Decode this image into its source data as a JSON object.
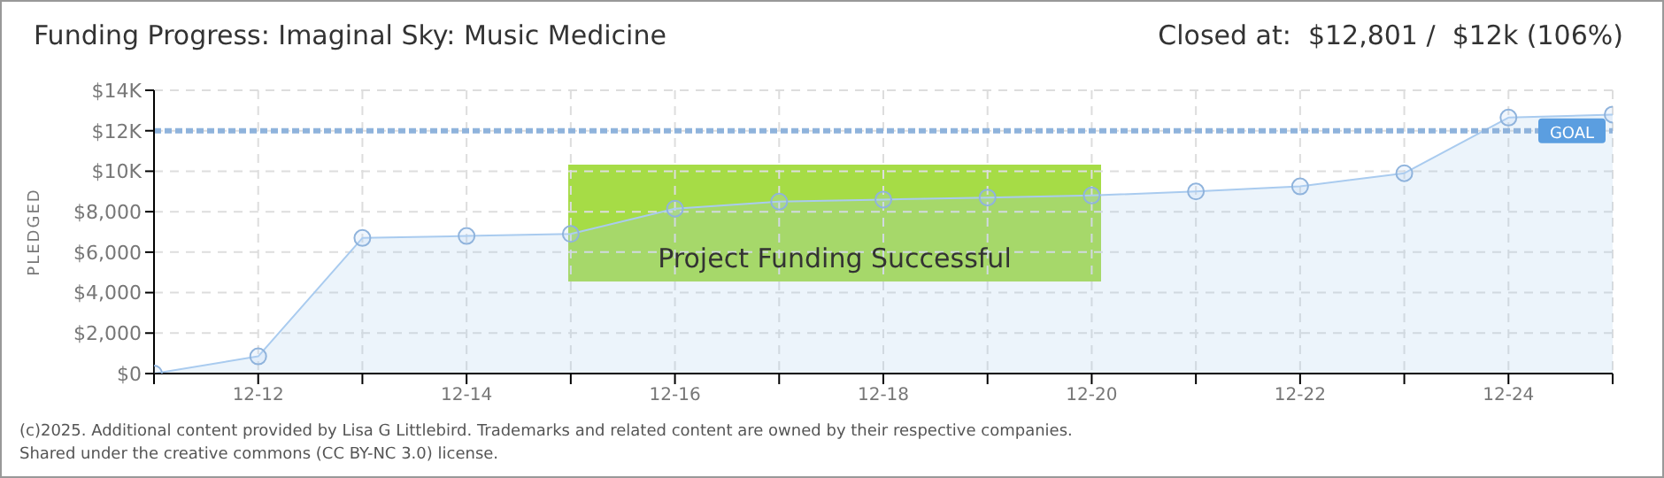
{
  "chart_data": {
    "type": "area",
    "title": "Funding Progress: Imaginal Sky: Music Medicine",
    "subtitle": "Closed at:  $12,801 /  $12k (106%)",
    "ylabel": "PLEDGED",
    "categories": [
      null,
      "12-12",
      null,
      "12-14",
      null,
      "12-16",
      null,
      "12-18",
      null,
      "12-20",
      null,
      "12-22",
      null,
      "12-24",
      null
    ],
    "series": [
      {
        "color": "#a9cbef",
        "values": [
          0,
          850,
          6700,
          6800,
          6900,
          8150,
          8500,
          8600,
          8700,
          8800,
          9000,
          9250,
          9900,
          12650,
          12801
        ]
      }
    ],
    "ylim": [
      0,
      14000
    ],
    "yticks": [
      {
        "value": 0,
        "label": "$0"
      },
      {
        "value": 2000,
        "label": "$2,000"
      },
      {
        "value": 4000,
        "label": "$4,000"
      },
      {
        "value": 6000,
        "label": "$6,000"
      },
      {
        "value": 8000,
        "label": "$8,000"
      },
      {
        "value": 10000,
        "label": "$10K"
      },
      {
        "value": 12000,
        "label": "$12K"
      },
      {
        "value": 14000,
        "label": "$14K"
      }
    ],
    "ref_lines": [
      {
        "axis": "y",
        "value": 12000,
        "label": "GOAL",
        "color": "#8fb3dc",
        "line_style": "dashed"
      }
    ],
    "annotations": [
      "Project Funding Successful",
      "(c)2025. Additional content provided by Lisa G Littlebird. Trademarks and related content are owned by their respective companies.",
      "Shared under the creative commons (CC BY-NC 3.0) license."
    ],
    "grid": true,
    "marker": "circle",
    "legend": false
  }
}
